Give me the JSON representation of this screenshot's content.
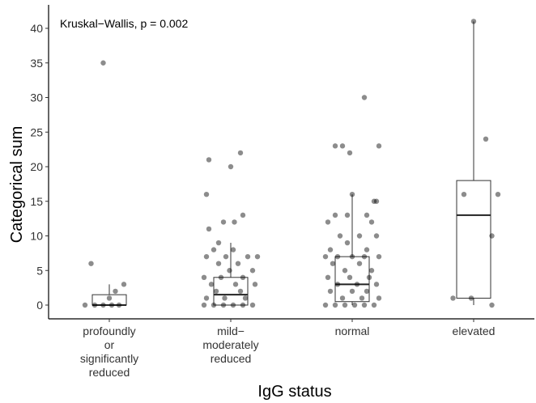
{
  "chart_data": {
    "type": "boxplot",
    "annotation": "Kruskal−Wallis, p = 0.002",
    "xlabel": "IgG status",
    "ylabel": "Categorical sum",
    "ylim": [
      -2,
      43
    ],
    "yticks": [
      0,
      5,
      10,
      15,
      20,
      25,
      30,
      35,
      40
    ],
    "grid": false,
    "categories": [
      {
        "lines": [
          "profoundly",
          "or",
          "significantly",
          "reduced"
        ]
      },
      {
        "lines": [
          "mild−",
          "moderately",
          "reduced"
        ]
      },
      {
        "lines": [
          "normal"
        ]
      },
      {
        "lines": [
          "elevated"
        ]
      }
    ],
    "boxes": [
      {
        "q1": 0,
        "median": 0,
        "q3": 1.5,
        "whisker_low": 0,
        "whisker_high": 3
      },
      {
        "q1": 0,
        "median": 1.5,
        "q3": 4,
        "whisker_low": 0,
        "whisker_high": 9
      },
      {
        "q1": 0.5,
        "median": 3,
        "q3": 7,
        "whisker_low": 0,
        "whisker_high": 16
      },
      {
        "q1": 1,
        "median": 13,
        "q3": 18,
        "whisker_low": 0,
        "whisker_high": 41
      }
    ],
    "points": [
      {
        "group": 0,
        "jitter": -0.05,
        "y": 35
      },
      {
        "group": 0,
        "jitter": -0.15,
        "y": 6
      },
      {
        "group": 0,
        "jitter": 0.12,
        "y": 3
      },
      {
        "group": 0,
        "jitter": 0.05,
        "y": 2
      },
      {
        "group": 0,
        "jitter": 0.0,
        "y": 1
      },
      {
        "group": 0,
        "jitter": -0.2,
        "y": 0
      },
      {
        "group": 0,
        "jitter": -0.12,
        "y": 0
      },
      {
        "group": 0,
        "jitter": -0.05,
        "y": 0
      },
      {
        "group": 0,
        "jitter": 0.02,
        "y": 0
      },
      {
        "group": 0,
        "jitter": 0.08,
        "y": 0
      },
      {
        "group": 1,
        "jitter": 0.08,
        "y": 22
      },
      {
        "group": 1,
        "jitter": -0.18,
        "y": 21
      },
      {
        "group": 1,
        "jitter": 0.0,
        "y": 20
      },
      {
        "group": 1,
        "jitter": -0.2,
        "y": 16
      },
      {
        "group": 1,
        "jitter": 0.1,
        "y": 13
      },
      {
        "group": 1,
        "jitter": -0.06,
        "y": 12
      },
      {
        "group": 1,
        "jitter": 0.03,
        "y": 12
      },
      {
        "group": 1,
        "jitter": -0.18,
        "y": 11
      },
      {
        "group": 1,
        "jitter": -0.1,
        "y": 9
      },
      {
        "group": 1,
        "jitter": -0.14,
        "y": 8
      },
      {
        "group": 1,
        "jitter": 0.02,
        "y": 8
      },
      {
        "group": 1,
        "jitter": -0.2,
        "y": 7
      },
      {
        "group": 1,
        "jitter": -0.04,
        "y": 7
      },
      {
        "group": 1,
        "jitter": 0.14,
        "y": 7
      },
      {
        "group": 1,
        "jitter": 0.22,
        "y": 7
      },
      {
        "group": 1,
        "jitter": -0.1,
        "y": 6
      },
      {
        "group": 1,
        "jitter": 0.06,
        "y": 6
      },
      {
        "group": 1,
        "jitter": -0.01,
        "y": 5
      },
      {
        "group": 1,
        "jitter": 0.18,
        "y": 5
      },
      {
        "group": 1,
        "jitter": -0.22,
        "y": 4
      },
      {
        "group": 1,
        "jitter": -0.08,
        "y": 4
      },
      {
        "group": 1,
        "jitter": 0.1,
        "y": 4
      },
      {
        "group": 1,
        "jitter": -0.16,
        "y": 3
      },
      {
        "group": 1,
        "jitter": 0.04,
        "y": 3
      },
      {
        "group": 1,
        "jitter": 0.2,
        "y": 3
      },
      {
        "group": 1,
        "jitter": -0.12,
        "y": 2
      },
      {
        "group": 1,
        "jitter": 0.08,
        "y": 2
      },
      {
        "group": 1,
        "jitter": -0.2,
        "y": 1
      },
      {
        "group": 1,
        "jitter": -0.05,
        "y": 1
      },
      {
        "group": 1,
        "jitter": 0.12,
        "y": 1
      },
      {
        "group": 1,
        "jitter": -0.22,
        "y": 0
      },
      {
        "group": 1,
        "jitter": -0.14,
        "y": 0
      },
      {
        "group": 1,
        "jitter": -0.06,
        "y": 0
      },
      {
        "group": 1,
        "jitter": 0.02,
        "y": 0
      },
      {
        "group": 1,
        "jitter": 0.1,
        "y": 0
      },
      {
        "group": 1,
        "jitter": 0.18,
        "y": 0
      },
      {
        "group": 2,
        "jitter": 0.1,
        "y": 30
      },
      {
        "group": 2,
        "jitter": -0.14,
        "y": 23
      },
      {
        "group": 2,
        "jitter": -0.08,
        "y": 23
      },
      {
        "group": 2,
        "jitter": 0.22,
        "y": 23
      },
      {
        "group": 2,
        "jitter": -0.02,
        "y": 22
      },
      {
        "group": 2,
        "jitter": 0.0,
        "y": 16
      },
      {
        "group": 2,
        "jitter": 0.18,
        "y": 15
      },
      {
        "group": 2,
        "jitter": 0.2,
        "y": 15
      },
      {
        "group": 2,
        "jitter": -0.14,
        "y": 13
      },
      {
        "group": 2,
        "jitter": -0.04,
        "y": 13
      },
      {
        "group": 2,
        "jitter": 0.12,
        "y": 13
      },
      {
        "group": 2,
        "jitter": -0.2,
        "y": 12
      },
      {
        "group": 2,
        "jitter": 0.16,
        "y": 12
      },
      {
        "group": 2,
        "jitter": -0.1,
        "y": 10
      },
      {
        "group": 2,
        "jitter": 0.06,
        "y": 10
      },
      {
        "group": 2,
        "jitter": 0.2,
        "y": 10
      },
      {
        "group": 2,
        "jitter": -0.04,
        "y": 9
      },
      {
        "group": 2,
        "jitter": -0.18,
        "y": 8
      },
      {
        "group": 2,
        "jitter": 0.12,
        "y": 8
      },
      {
        "group": 2,
        "jitter": -0.22,
        "y": 7
      },
      {
        "group": 2,
        "jitter": -0.12,
        "y": 7
      },
      {
        "group": 2,
        "jitter": 0.0,
        "y": 7
      },
      {
        "group": 2,
        "jitter": 0.1,
        "y": 7
      },
      {
        "group": 2,
        "jitter": 0.22,
        "y": 7
      },
      {
        "group": 2,
        "jitter": -0.16,
        "y": 6
      },
      {
        "group": 2,
        "jitter": 0.06,
        "y": 6
      },
      {
        "group": 2,
        "jitter": -0.06,
        "y": 5
      },
      {
        "group": 2,
        "jitter": 0.16,
        "y": 5
      },
      {
        "group": 2,
        "jitter": -0.2,
        "y": 4
      },
      {
        "group": 2,
        "jitter": -0.02,
        "y": 4
      },
      {
        "group": 2,
        "jitter": 0.14,
        "y": 4
      },
      {
        "group": 2,
        "jitter": -0.12,
        "y": 3
      },
      {
        "group": 2,
        "jitter": 0.04,
        "y": 3
      },
      {
        "group": 2,
        "jitter": 0.2,
        "y": 3
      },
      {
        "group": 2,
        "jitter": -0.18,
        "y": 2
      },
      {
        "group": 2,
        "jitter": 0.0,
        "y": 2
      },
      {
        "group": 2,
        "jitter": 0.12,
        "y": 2
      },
      {
        "group": 2,
        "jitter": -0.08,
        "y": 1
      },
      {
        "group": 2,
        "jitter": 0.08,
        "y": 1
      },
      {
        "group": 2,
        "jitter": 0.22,
        "y": 1
      },
      {
        "group": 2,
        "jitter": -0.22,
        "y": 0
      },
      {
        "group": 2,
        "jitter": -0.14,
        "y": 0
      },
      {
        "group": 2,
        "jitter": -0.06,
        "y": 0
      },
      {
        "group": 2,
        "jitter": 0.02,
        "y": 0
      },
      {
        "group": 2,
        "jitter": 0.1,
        "y": 0
      },
      {
        "group": 2,
        "jitter": 0.18,
        "y": 0
      },
      {
        "group": 3,
        "jitter": 0.0,
        "y": 41
      },
      {
        "group": 3,
        "jitter": 0.1,
        "y": 24
      },
      {
        "group": 3,
        "jitter": -0.08,
        "y": 16
      },
      {
        "group": 3,
        "jitter": 0.2,
        "y": 16
      },
      {
        "group": 3,
        "jitter": 0.15,
        "y": 10
      },
      {
        "group": 3,
        "jitter": -0.17,
        "y": 1
      },
      {
        "group": 3,
        "jitter": -0.02,
        "y": 1
      },
      {
        "group": 3,
        "jitter": 0.15,
        "y": 0
      }
    ]
  }
}
